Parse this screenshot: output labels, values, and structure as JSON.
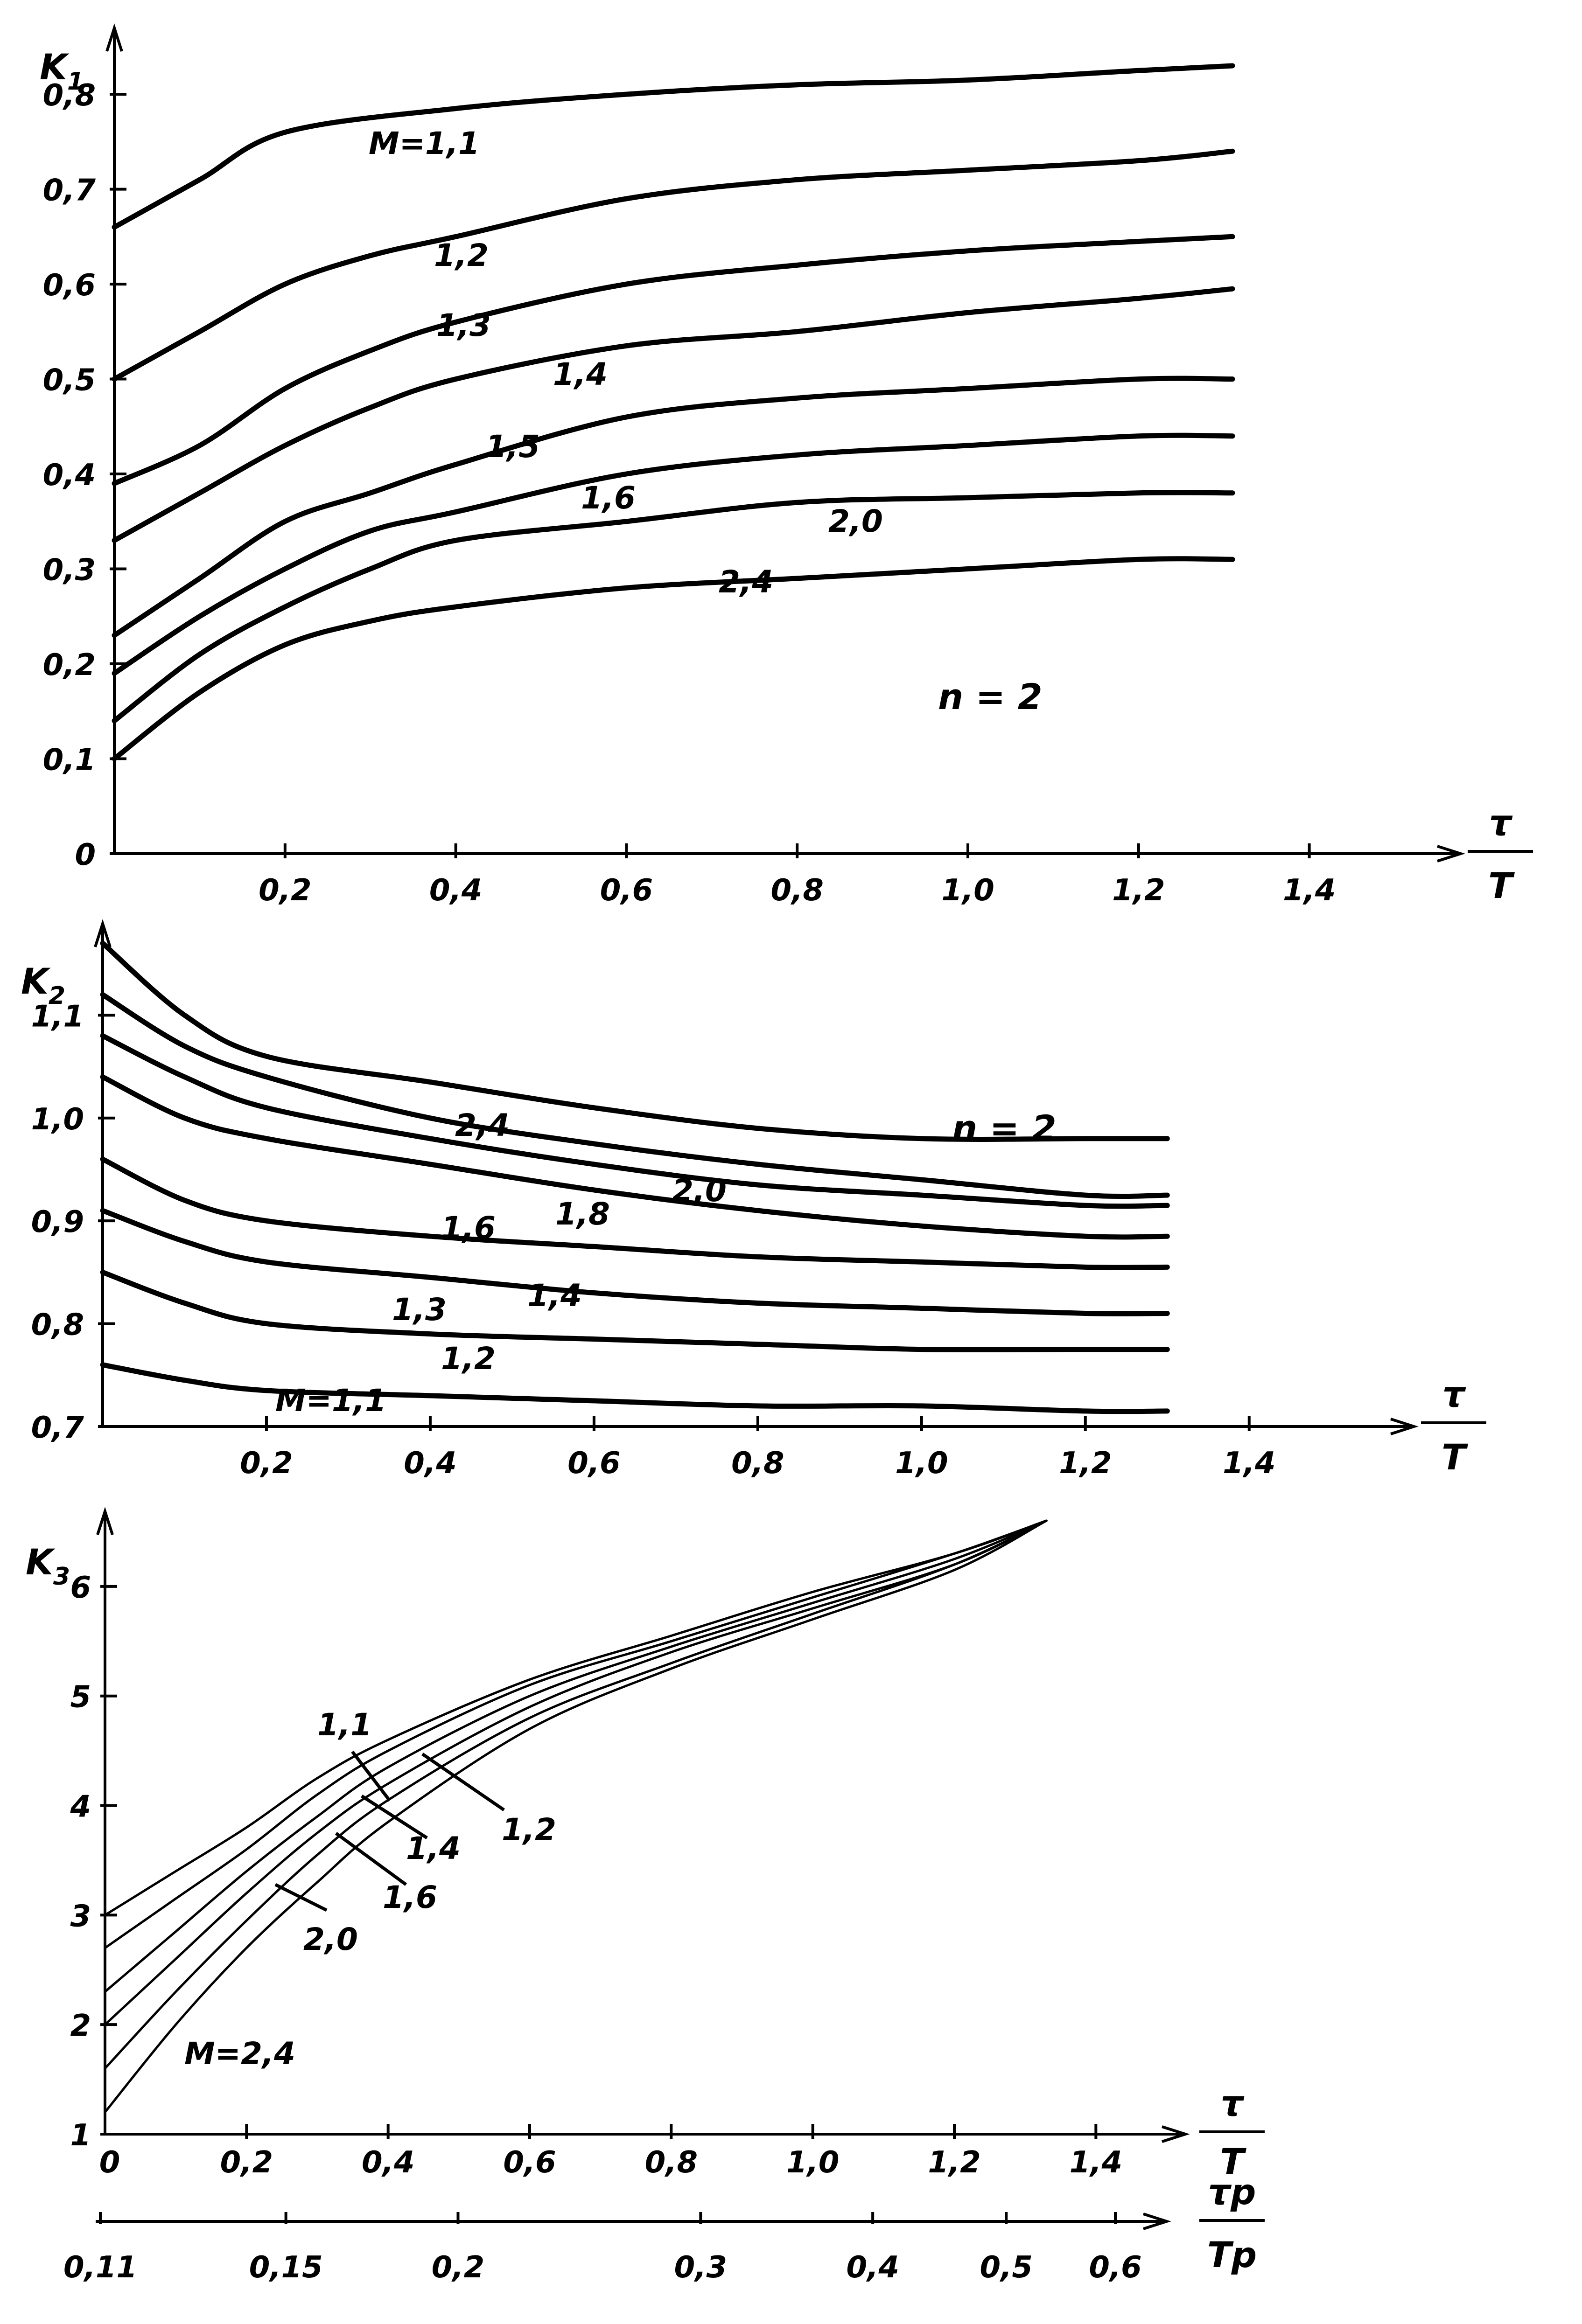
{
  "chart_data": [
    {
      "type": "line",
      "ylabel": "K",
      "ylabel_sub": "1",
      "xlabel_num": "τ",
      "xlabel_den": "T",
      "annotation": "n = 2",
      "xlim": [
        0,
        1.55
      ],
      "ylim": [
        0,
        0.86
      ],
      "x_ticks": [
        "0,2",
        "0,4",
        "0,6",
        "0,8",
        "1,0",
        "1,2",
        "1,4"
      ],
      "y_ticks": [
        "0",
        "0,1",
        "0,2",
        "0,3",
        "0,4",
        "0,5",
        "0,6",
        "0,7",
        "0,8"
      ],
      "series": [
        {
          "name": "M=1,1",
          "x": [
            0,
            0.1,
            0.2,
            0.4,
            0.6,
            0.8,
            1.0,
            1.2,
            1.31
          ],
          "y": [
            0.66,
            0.71,
            0.76,
            0.785,
            0.8,
            0.81,
            0.815,
            0.825,
            0.83
          ]
        },
        {
          "name": "1,2",
          "x": [
            0,
            0.1,
            0.2,
            0.3,
            0.4,
            0.6,
            0.8,
            1.0,
            1.2,
            1.31
          ],
          "y": [
            0.5,
            0.55,
            0.6,
            0.63,
            0.65,
            0.69,
            0.71,
            0.72,
            0.73,
            0.74
          ]
        },
        {
          "name": "1,3",
          "x": [
            0,
            0.1,
            0.2,
            0.3,
            0.4,
            0.6,
            0.8,
            1.0,
            1.2,
            1.31
          ],
          "y": [
            0.39,
            0.43,
            0.49,
            0.53,
            0.56,
            0.6,
            0.62,
            0.635,
            0.645,
            0.65
          ]
        },
        {
          "name": "1,4",
          "x": [
            0,
            0.1,
            0.2,
            0.3,
            0.4,
            0.6,
            0.8,
            1.0,
            1.2,
            1.31
          ],
          "y": [
            0.33,
            0.38,
            0.43,
            0.47,
            0.5,
            0.535,
            0.55,
            0.57,
            0.585,
            0.595
          ]
        },
        {
          "name": "1,5",
          "x": [
            0,
            0.1,
            0.2,
            0.3,
            0.4,
            0.6,
            0.8,
            1.0,
            1.2,
            1.31
          ],
          "y": [
            0.23,
            0.29,
            0.35,
            0.38,
            0.41,
            0.46,
            0.48,
            0.49,
            0.5,
            0.5
          ]
        },
        {
          "name": "1,6",
          "x": [
            0,
            0.1,
            0.2,
            0.3,
            0.4,
            0.6,
            0.8,
            1.0,
            1.2,
            1.31
          ],
          "y": [
            0.19,
            0.25,
            0.3,
            0.34,
            0.36,
            0.4,
            0.42,
            0.43,
            0.44,
            0.44
          ]
        },
        {
          "name": "2,0",
          "x": [
            0,
            0.1,
            0.2,
            0.3,
            0.4,
            0.6,
            0.8,
            1.0,
            1.2,
            1.31
          ],
          "y": [
            0.14,
            0.21,
            0.26,
            0.3,
            0.33,
            0.35,
            0.37,
            0.375,
            0.38,
            0.38
          ]
        },
        {
          "name": "2,4",
          "x": [
            0,
            0.1,
            0.2,
            0.3,
            0.4,
            0.6,
            0.8,
            1.0,
            1.2,
            1.31
          ],
          "y": [
            0.1,
            0.17,
            0.22,
            0.245,
            0.26,
            0.28,
            0.29,
            0.3,
            0.31,
            0.31
          ]
        }
      ]
    },
    {
      "type": "line",
      "ylabel": "K",
      "ylabel_sub": "2",
      "xlabel_num": "τ",
      "xlabel_den": "T",
      "annotation": "n = 2",
      "xlim": [
        0,
        1.55
      ],
      "ylim": [
        0.7,
        1.18
      ],
      "x_ticks": [
        "0,2",
        "0,4",
        "0,6",
        "0,8",
        "1,0",
        "1,2",
        "1,4"
      ],
      "y_ticks": [
        "0,7",
        "0,8",
        "0,9",
        "1,0",
        "1,1"
      ],
      "series": [
        {
          "name": "2,4",
          "x": [
            0,
            0.1,
            0.2,
            0.4,
            0.6,
            0.8,
            1.0,
            1.2,
            1.3
          ],
          "y": [
            1.17,
            1.1,
            1.06,
            1.035,
            1.01,
            0.99,
            0.98,
            0.98,
            0.98
          ]
        },
        {
          "name": "2,0",
          "x": [
            0,
            0.1,
            0.2,
            0.4,
            0.6,
            0.8,
            1.0,
            1.2,
            1.3
          ],
          "y": [
            1.12,
            1.07,
            1.04,
            1.0,
            0.975,
            0.955,
            0.94,
            0.925,
            0.925
          ]
        },
        {
          "name": "1,8",
          "x": [
            0,
            0.1,
            0.2,
            0.4,
            0.6,
            0.8,
            1.0,
            1.2,
            1.3
          ],
          "y": [
            1.08,
            1.04,
            1.01,
            0.98,
            0.955,
            0.935,
            0.925,
            0.915,
            0.915
          ]
        },
        {
          "name": "1,6",
          "x": [
            0,
            0.1,
            0.2,
            0.4,
            0.6,
            0.8,
            1.0,
            1.2,
            1.3
          ],
          "y": [
            1.04,
            1.0,
            0.98,
            0.955,
            0.93,
            0.91,
            0.895,
            0.885,
            0.885
          ]
        },
        {
          "name": "1,4",
          "x": [
            0,
            0.1,
            0.2,
            0.4,
            0.6,
            0.8,
            1.0,
            1.2,
            1.3
          ],
          "y": [
            0.96,
            0.92,
            0.9,
            0.885,
            0.875,
            0.865,
            0.86,
            0.855,
            0.855
          ]
        },
        {
          "name": "1,3",
          "x": [
            0,
            0.1,
            0.2,
            0.4,
            0.6,
            0.8,
            1.0,
            1.2,
            1.3
          ],
          "y": [
            0.91,
            0.88,
            0.86,
            0.845,
            0.83,
            0.82,
            0.815,
            0.81,
            0.81
          ]
        },
        {
          "name": "1,2",
          "x": [
            0,
            0.1,
            0.2,
            0.4,
            0.6,
            0.8,
            1.0,
            1.2,
            1.3
          ],
          "y": [
            0.85,
            0.82,
            0.8,
            0.79,
            0.785,
            0.78,
            0.775,
            0.775,
            0.775
          ]
        },
        {
          "name": "M=1,1",
          "x": [
            0,
            0.1,
            0.2,
            0.4,
            0.6,
            0.8,
            1.0,
            1.2,
            1.3
          ],
          "y": [
            0.76,
            0.745,
            0.735,
            0.73,
            0.725,
            0.72,
            0.72,
            0.715,
            0.715
          ]
        }
      ]
    },
    {
      "type": "line",
      "ylabel": "K",
      "ylabel_sub": "3",
      "xlabel_num": "τ",
      "xlabel_den": "T",
      "x2label_num": "τp",
      "x2label_den": "Tp",
      "xlim": [
        0,
        1.5
      ],
      "ylim": [
        1,
        6.6
      ],
      "x_ticks": [
        "0",
        "0,2",
        "0,4",
        "0,6",
        "0,8",
        "1,0",
        "1,2",
        "1,4"
      ],
      "x2_ticks": [
        "0,11",
        "0,15",
        "0,2",
        "0,3",
        "0,4",
        "0,5",
        "0,6"
      ],
      "y_ticks": [
        "1",
        "2",
        "3",
        "4",
        "5",
        "6"
      ],
      "series": [
        {
          "name": "1,1",
          "x": [
            0,
            0.1,
            0.2,
            0.3,
            0.4,
            0.6,
            0.8,
            1.0,
            1.2,
            1.33
          ],
          "y": [
            3.0,
            3.4,
            3.8,
            4.25,
            4.6,
            5.15,
            5.55,
            5.95,
            6.3,
            6.6
          ]
        },
        {
          "name": "1,2",
          "x": [
            0,
            0.1,
            0.2,
            0.3,
            0.4,
            0.6,
            0.8,
            1.0,
            1.2,
            1.33
          ],
          "y": [
            2.7,
            3.15,
            3.6,
            4.1,
            4.5,
            5.1,
            5.5,
            5.9,
            6.3,
            6.6
          ]
        },
        {
          "name": "1,4",
          "x": [
            0,
            0.1,
            0.2,
            0.3,
            0.4,
            0.6,
            0.8,
            1.0,
            1.2,
            1.33
          ],
          "y": [
            2.3,
            2.85,
            3.4,
            3.9,
            4.35,
            5.0,
            5.45,
            5.85,
            6.25,
            6.6
          ]
        },
        {
          "name": "1,6",
          "x": [
            0,
            0.1,
            0.2,
            0.3,
            0.4,
            0.6,
            0.8,
            1.0,
            1.2,
            1.33
          ],
          "y": [
            2.0,
            2.6,
            3.2,
            3.75,
            4.2,
            4.9,
            5.4,
            5.8,
            6.2,
            6.6
          ]
        },
        {
          "name": "2,0",
          "x": [
            0,
            0.1,
            0.2,
            0.3,
            0.4,
            0.6,
            0.8,
            1.0,
            1.2,
            1.33
          ],
          "y": [
            1.6,
            2.3,
            2.95,
            3.55,
            4.05,
            4.8,
            5.3,
            5.75,
            6.2,
            6.6
          ]
        },
        {
          "name": "M=2,4",
          "x": [
            0,
            0.1,
            0.2,
            0.3,
            0.4,
            0.6,
            0.8,
            1.0,
            1.2,
            1.33
          ],
          "y": [
            1.2,
            2.0,
            2.7,
            3.3,
            3.85,
            4.7,
            5.25,
            5.7,
            6.15,
            6.6
          ]
        }
      ]
    }
  ]
}
